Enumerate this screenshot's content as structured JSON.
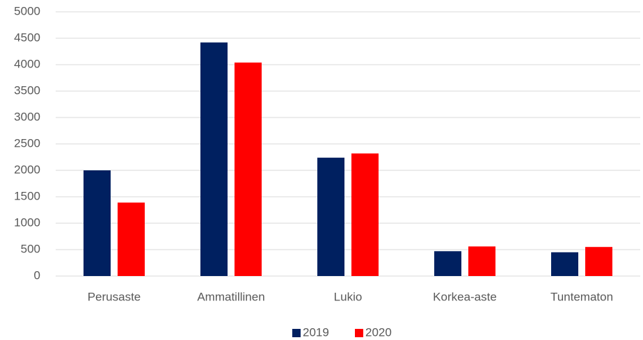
{
  "chart_data": {
    "type": "bar",
    "categories": [
      "Perusaste",
      "Ammatillinen",
      "Lukio",
      "Korkea-aste",
      "Tuntematon"
    ],
    "series": [
      {
        "name": "2019",
        "color": "#002060",
        "values": [
          2000,
          4420,
          2240,
          470,
          450
        ]
      },
      {
        "name": "2020",
        "color": "#ff0000",
        "values": [
          1390,
          4040,
          2320,
          560,
          550
        ]
      }
    ],
    "ylim": [
      0,
      5000
    ],
    "yticks": [
      0,
      500,
      1000,
      1500,
      2000,
      2500,
      3000,
      3500,
      4000,
      4500,
      5000
    ],
    "grid": true,
    "legend": "bottom"
  }
}
